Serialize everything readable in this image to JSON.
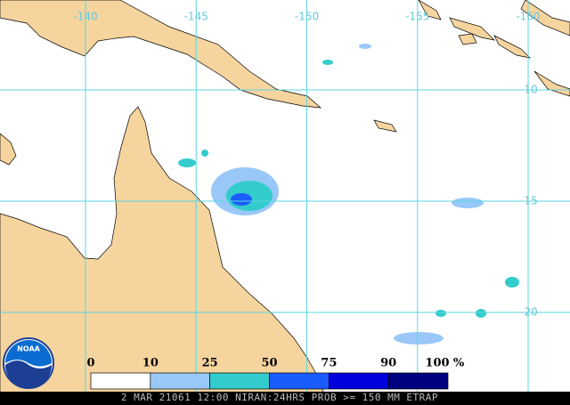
{
  "map": {
    "longitudes": [
      -140,
      -145,
      -150,
      -155,
      -160
    ],
    "latitudes": [
      -10,
      -15,
      -20
    ],
    "legend": {
      "ticks": [
        0,
        10,
        25,
        50,
        75,
        90,
        100
      ],
      "unit": "%",
      "colors": [
        "#ffffff",
        "#99c8f8",
        "#33cccc",
        "#1a5cff",
        "#0000dd",
        "#000080"
      ]
    },
    "logo": "NOAA",
    "footer": "2 MAR 21061 12:00 NIRAN:24HRS PROB >= 150 MM ETRAP"
  }
}
